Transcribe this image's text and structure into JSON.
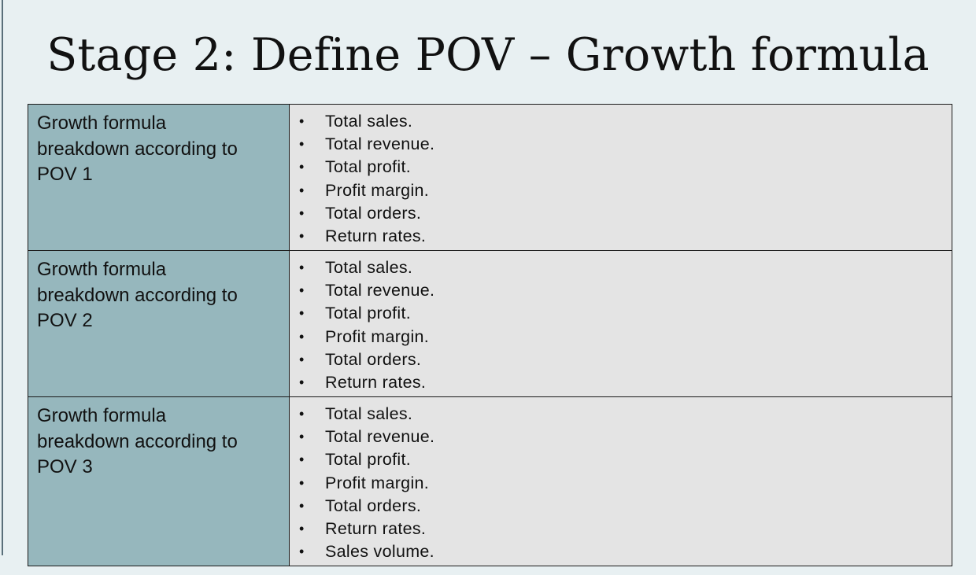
{
  "slide": {
    "title": "Stage 2: Define POV – Growth formula"
  },
  "table": {
    "rows": [
      {
        "label": "Growth formula\nbreakdown according to\nPOV 1",
        "items": [
          "Total sales.",
          "Total revenue.",
          "Total profit.",
          "Profit margin.",
          "Total orders.",
          "Return rates."
        ]
      },
      {
        "label": "Growth formula\nbreakdown according to\nPOV 2",
        "items": [
          "Total sales.",
          "Total revenue.",
          "Total profit.",
          "Profit margin.",
          "Total orders.",
          "Return rates."
        ]
      },
      {
        "label": "Growth formula\nbreakdown according to\nPOV 3",
        "items": [
          "Total sales.",
          "Total revenue.",
          "Total profit.",
          "Profit margin.",
          "Total orders.",
          "Return rates.",
          "Sales volume."
        ]
      }
    ]
  },
  "colors": {
    "background": "#e8f0f2",
    "label_cell": "#96b7bd",
    "list_cell": "#e4e4e4",
    "border": "#1a1a1a"
  }
}
